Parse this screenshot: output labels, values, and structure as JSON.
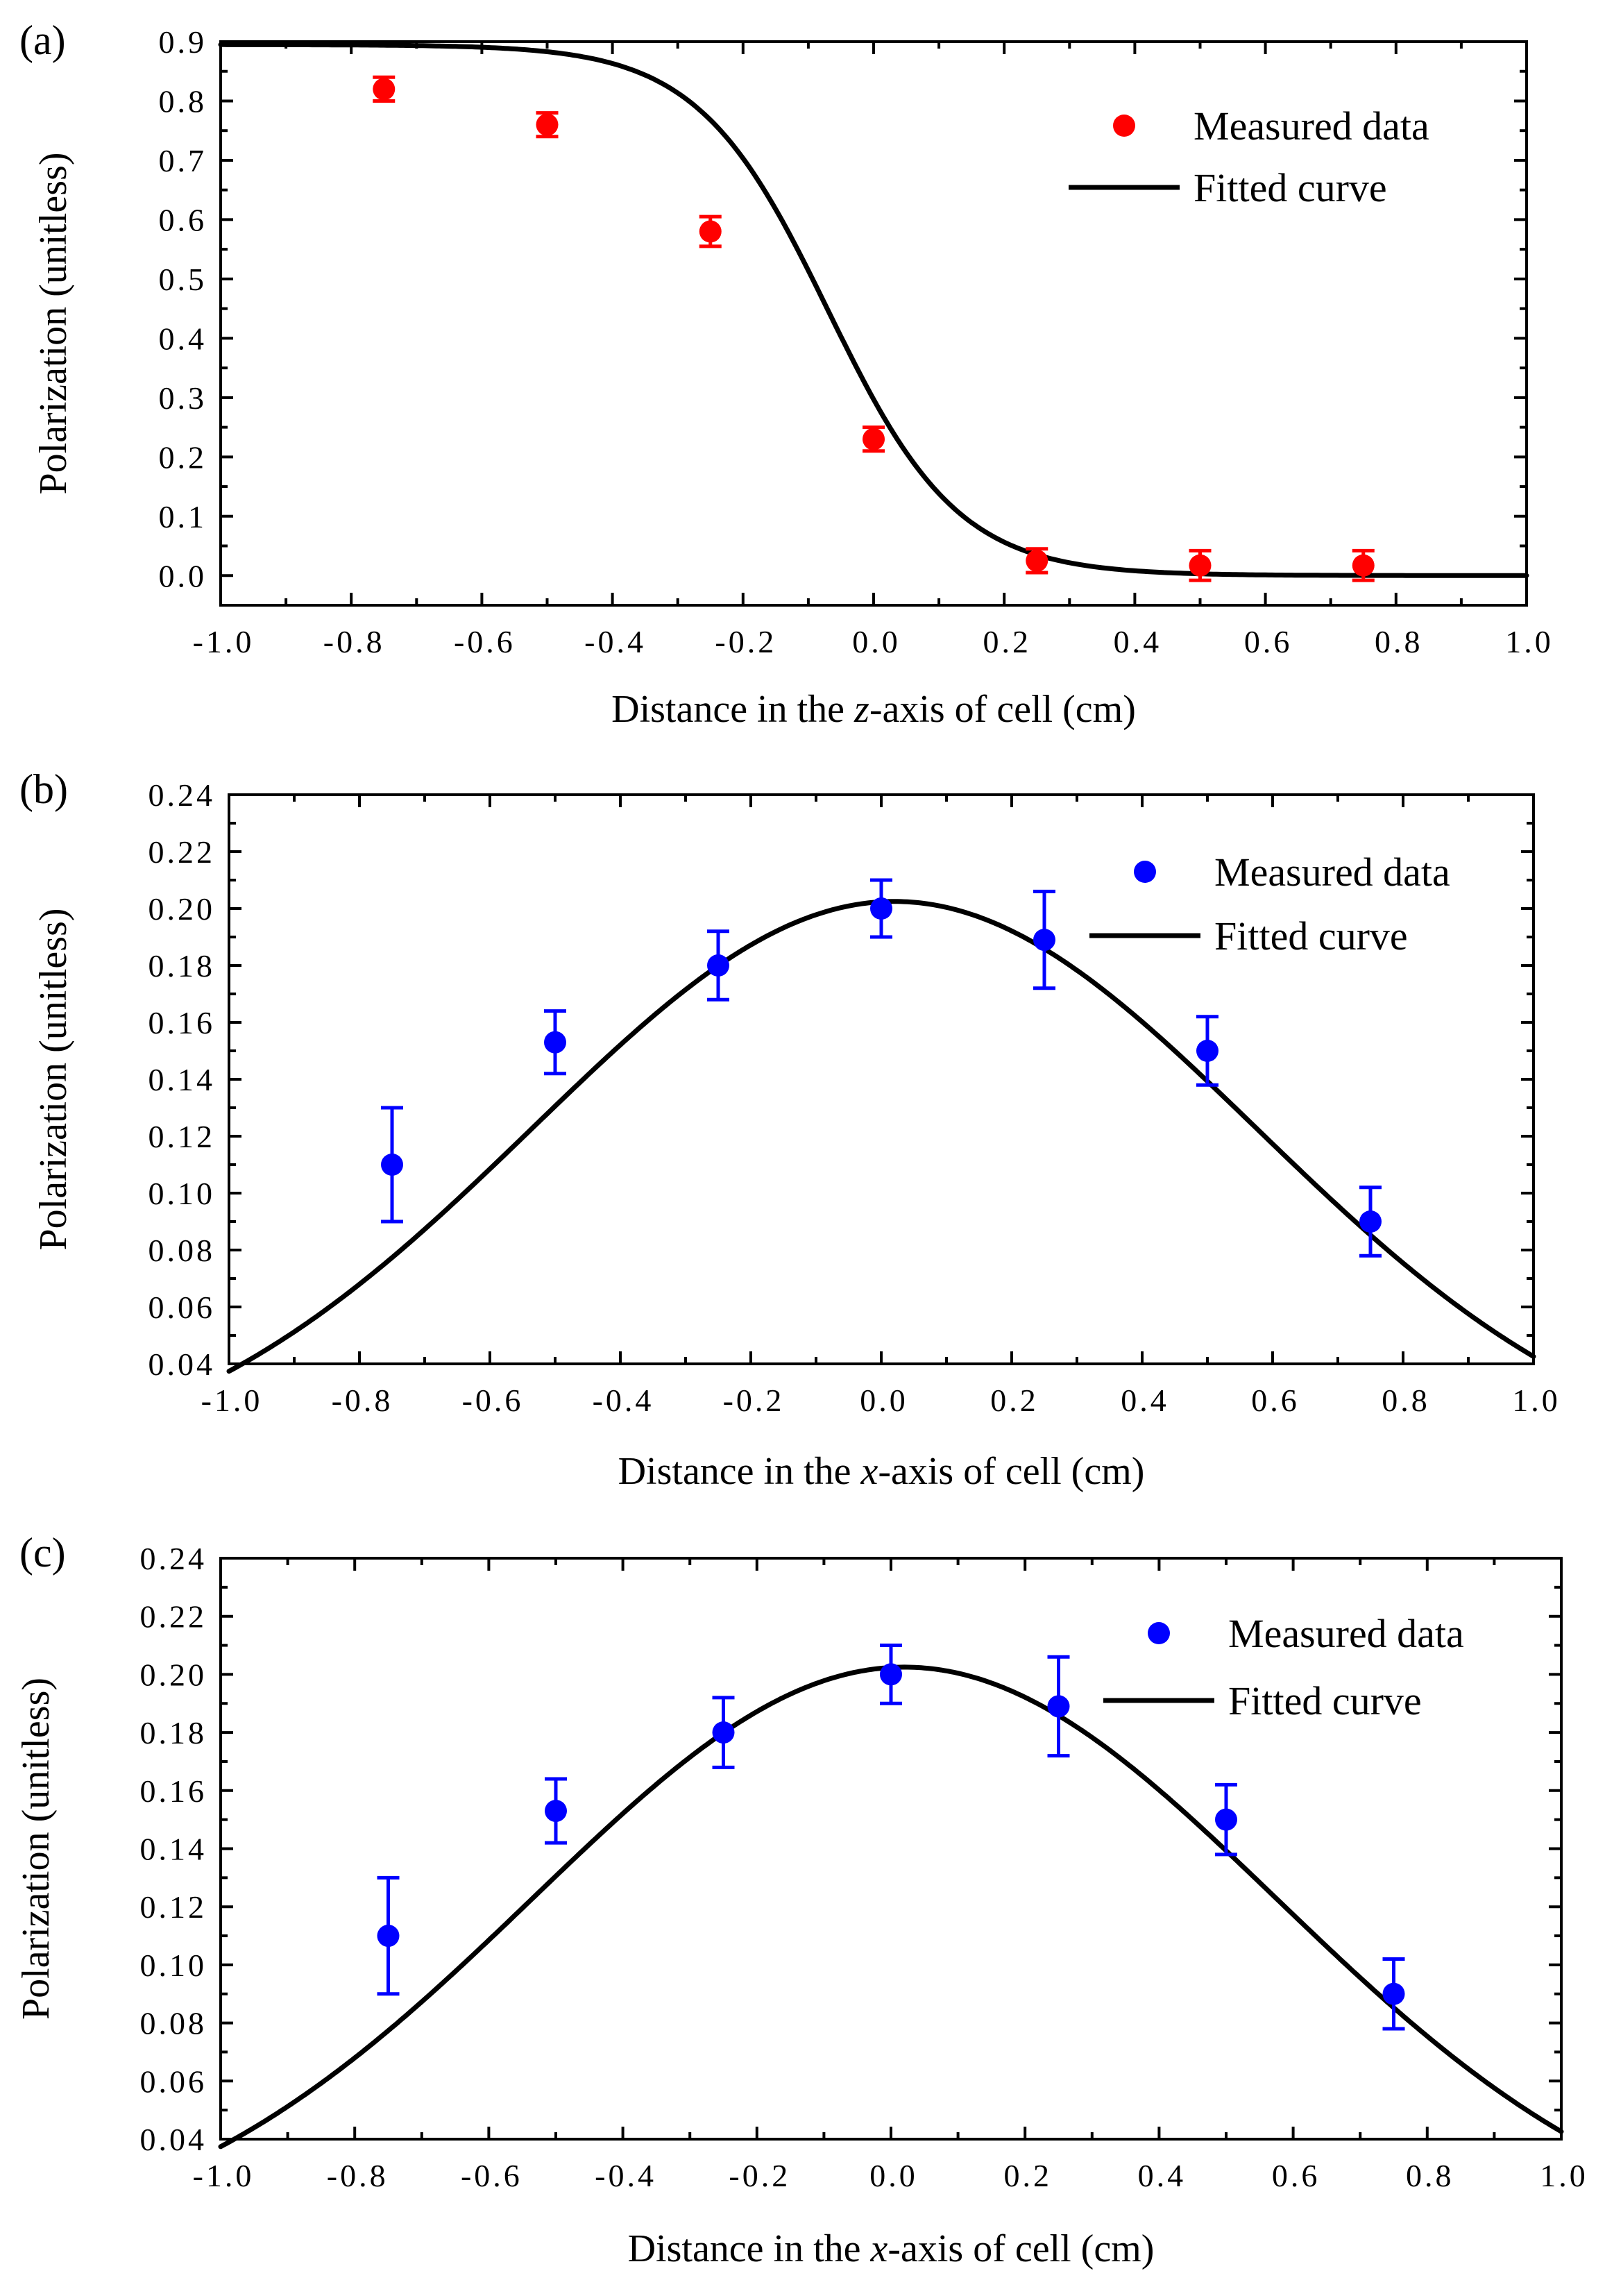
{
  "chart_data": [
    {
      "type": "scatter",
      "panel_label": "(a)",
      "xlabel_parts": [
        "Distance in the ",
        "z",
        "-axis of cell (cm)"
      ],
      "ylabel": "Polarization (unitless)",
      "xlim": [
        -1.0,
        1.0
      ],
      "ylim": [
        -0.05,
        0.9
      ],
      "xticks": [
        -1.0,
        -0.8,
        -0.6,
        -0.4,
        -0.2,
        0.0,
        0.2,
        0.4,
        0.6,
        0.8,
        1.0
      ],
      "xtick_labels": [
        "-1.0",
        "-0.8",
        "-0.6",
        "-0.4",
        "-0.2",
        "0.0",
        "0.2",
        "0.4",
        "0.6",
        "0.8",
        "1.0"
      ],
      "yticks": [
        0.0,
        0.1,
        0.2,
        0.3,
        0.4,
        0.5,
        0.6,
        0.7,
        0.8,
        0.9
      ],
      "ytick_labels": [
        "0.0",
        "0.1",
        "0.2",
        "0.3",
        "0.4",
        "0.5",
        "0.6",
        "0.7",
        "0.8",
        "0.9"
      ],
      "marker_color": "#ff0000",
      "series": [
        {
          "name": "Measured data",
          "x": [
            -0.75,
            -0.5,
            -0.25,
            0.0,
            0.25,
            0.5,
            0.75
          ],
          "y": [
            0.82,
            0.76,
            0.58,
            0.23,
            0.025,
            0.017,
            0.017
          ],
          "yerr": [
            0.02,
            0.02,
            0.025,
            0.02,
            0.02,
            0.025,
            0.025
          ]
        },
        {
          "name": "Fitted curve",
          "model": "logistic",
          "params": {
            "amplitude": 0.895,
            "center": -0.07,
            "width": 0.1
          }
        }
      ],
      "legend": [
        "Measured data",
        "Fitted curve"
      ],
      "legend_position": "top-right"
    },
    {
      "type": "scatter",
      "panel_label": "(b)",
      "xlabel_parts": [
        "Distance in the ",
        "x",
        "-axis of cell (cm)"
      ],
      "ylabel": "Polarization (unitless)",
      "xlim": [
        -1.0,
        1.0
      ],
      "ylim": [
        0.04,
        0.24
      ],
      "xticks": [
        -1.0,
        -0.8,
        -0.6,
        -0.4,
        -0.2,
        0.0,
        0.2,
        0.4,
        0.6,
        0.8,
        1.0
      ],
      "xtick_labels": [
        "-1.0",
        "-0.8",
        "-0.6",
        "-0.4",
        "-0.2",
        "0.0",
        "0.2",
        "0.4",
        "0.6",
        "0.8",
        "1.0"
      ],
      "yticks": [
        0.04,
        0.06,
        0.08,
        0.1,
        0.12,
        0.14,
        0.16,
        0.18,
        0.2,
        0.22,
        0.24
      ],
      "ytick_labels": [
        "0.04",
        "0.06",
        "0.08",
        "0.10",
        "0.12",
        "0.14",
        "0.16",
        "0.18",
        "0.20",
        "0.22",
        "0.24"
      ],
      "marker_color": "#0000ff",
      "series": [
        {
          "name": "Measured data",
          "x": [
            -0.75,
            -0.5,
            -0.25,
            0.0,
            0.25,
            0.5,
            0.75
          ],
          "y": [
            0.11,
            0.153,
            0.18,
            0.2,
            0.189,
            0.15,
            0.09
          ],
          "yerr": [
            0.02,
            0.011,
            0.012,
            0.01,
            0.017,
            0.012,
            0.012
          ]
        },
        {
          "name": "Fitted curve",
          "model": "gaussian",
          "params": {
            "peak": 0.2025,
            "center": 0.02,
            "sigma": 0.555
          }
        }
      ],
      "legend": [
        "Measured data",
        "Fitted curve"
      ],
      "legend_position": "top-right"
    },
    {
      "type": "scatter",
      "panel_label": "(c)",
      "xlabel_parts": [
        "Distance in the ",
        "x",
        "-axis of cell (cm)"
      ],
      "ylabel": "Polarization (unitless)",
      "xlim": [
        -1.0,
        1.0
      ],
      "ylim": [
        0.04,
        0.24
      ],
      "xticks": [
        -1.0,
        -0.8,
        -0.6,
        -0.4,
        -0.2,
        0.0,
        0.2,
        0.4,
        0.6,
        0.8,
        1.0
      ],
      "xtick_labels": [
        "-1.0",
        "-0.8",
        "-0.6",
        "-0.4",
        "-0.2",
        "0.0",
        "0.2",
        "0.4",
        "0.6",
        "0.8",
        "1.0"
      ],
      "yticks": [
        0.04,
        0.06,
        0.08,
        0.1,
        0.12,
        0.14,
        0.16,
        0.18,
        0.2,
        0.22,
        0.24
      ],
      "ytick_labels": [
        "0.04",
        "0.06",
        "0.08",
        "0.10",
        "0.12",
        "0.14",
        "0.16",
        "0.18",
        "0.20",
        "0.22",
        "0.24"
      ],
      "marker_color": "#0000ff",
      "series": [
        {
          "name": "Measured data",
          "x": [
            -0.75,
            -0.5,
            -0.25,
            0.0,
            0.25,
            0.5,
            0.75
          ],
          "y": [
            0.11,
            0.153,
            0.18,
            0.2,
            0.189,
            0.15,
            0.09
          ],
          "yerr": [
            0.02,
            0.011,
            0.012,
            0.01,
            0.017,
            0.012,
            0.012
          ]
        },
        {
          "name": "Fitted curve",
          "model": "gaussian",
          "params": {
            "peak": 0.2025,
            "center": 0.02,
            "sigma": 0.555
          }
        }
      ],
      "legend": [
        "Measured data",
        "Fitted curve"
      ],
      "legend_position": "top-right"
    }
  ]
}
